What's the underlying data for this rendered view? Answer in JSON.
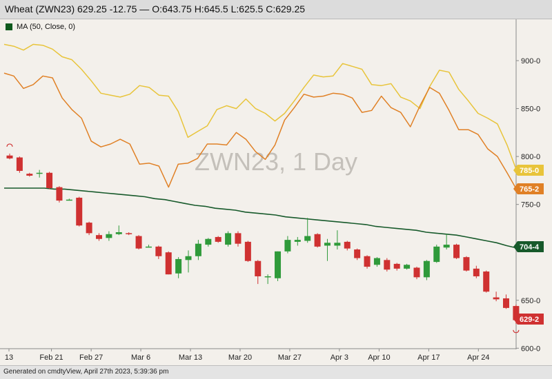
{
  "header": {
    "title": "Wheat (ZWN23) 629.25 -12.75 — O:643.75 H:645.5 L:625.5 C:629.25"
  },
  "legend": {
    "label": "MA (50, Close, 0)",
    "color": "#0f5a1e"
  },
  "footer": {
    "text": "Generated on cmdtyView, April 27th 2023, 5:39:36 pm"
  },
  "chart_data": {
    "type": "candlestick",
    "watermark": "ZWN23, 1 Day",
    "ylim": [
      600,
      935
    ],
    "y_ticks": [
      "900-0",
      "850-0",
      "800-0",
      "750-0",
      "650-0",
      "600-0"
    ],
    "x_ticks": [
      "13",
      "Feb 21",
      "Feb 27",
      "Mar 6",
      "Mar 13",
      "Mar 20",
      "Mar 27",
      "Apr 3",
      "Apr 10",
      "Apr 17",
      "Apr 24"
    ],
    "price_tags": [
      {
        "label": "785-0",
        "color": "#e8c43a"
      },
      {
        "label": "765-2",
        "color": "#e08025"
      },
      {
        "label": "704-4",
        "color": "#16592a"
      },
      {
        "label": "629-2",
        "color": "#cf3131"
      }
    ],
    "colors": {
      "up": "#2f9a3a",
      "down": "#cf3131",
      "ma": "#16592a",
      "upper_line": "#e8c43a",
      "lower_line": "#e08025"
    },
    "candles": [
      {
        "date": "Feb 14",
        "o": 801,
        "h": 803,
        "l": 797,
        "c": 798
      },
      {
        "date": "Feb 15",
        "o": 799,
        "h": 800,
        "l": 783,
        "c": 785
      },
      {
        "date": "Feb 16",
        "o": 782,
        "h": 783,
        "l": 779,
        "c": 780
      },
      {
        "date": "Feb 17",
        "o": 782,
        "h": 786,
        "l": 778,
        "c": 783
      },
      {
        "date": "Feb 21",
        "o": 783,
        "h": 784,
        "l": 766,
        "c": 767
      },
      {
        "date": "Feb 22",
        "o": 768,
        "h": 769,
        "l": 752,
        "c": 754
      },
      {
        "date": "Feb 23",
        "o": 755,
        "h": 756,
        "l": 754,
        "c": 755
      },
      {
        "date": "Feb 24",
        "o": 757,
        "h": 758,
        "l": 727,
        "c": 728
      },
      {
        "date": "Feb 27",
        "o": 731,
        "h": 732,
        "l": 718,
        "c": 720
      },
      {
        "date": "Feb 28",
        "o": 718,
        "h": 720,
        "l": 712,
        "c": 714
      },
      {
        "date": "Mar 1",
        "o": 715,
        "h": 722,
        "l": 712,
        "c": 719
      },
      {
        "date": "Mar 2",
        "o": 719,
        "h": 728,
        "l": 718,
        "c": 721
      },
      {
        "date": "Mar 3",
        "o": 720,
        "h": 721,
        "l": 718,
        "c": 719
      },
      {
        "date": "Mar 6",
        "o": 717,
        "h": 718,
        "l": 703,
        "c": 704
      },
      {
        "date": "Mar 7",
        "o": 706,
        "h": 708,
        "l": 705,
        "c": 706
      },
      {
        "date": "Mar 8",
        "o": 706,
        "h": 707,
        "l": 693,
        "c": 696
      },
      {
        "date": "Mar 9",
        "o": 700,
        "h": 701,
        "l": 677,
        "c": 677
      },
      {
        "date": "Mar 10",
        "o": 678,
        "h": 695,
        "l": 673,
        "c": 693
      },
      {
        "date": "Mar 13",
        "o": 692,
        "h": 702,
        "l": 679,
        "c": 696
      },
      {
        "date": "Mar 14",
        "o": 696,
        "h": 713,
        "l": 692,
        "c": 709
      },
      {
        "date": "Mar 15",
        "o": 708,
        "h": 715,
        "l": 706,
        "c": 714
      },
      {
        "date": "Mar 16",
        "o": 716,
        "h": 717,
        "l": 710,
        "c": 711
      },
      {
        "date": "Mar 17",
        "o": 708,
        "h": 722,
        "l": 706,
        "c": 720
      },
      {
        "date": "Mar 20",
        "o": 720,
        "h": 722,
        "l": 706,
        "c": 709
      },
      {
        "date": "Mar 21",
        "o": 711,
        "h": 712,
        "l": 690,
        "c": 691
      },
      {
        "date": "Mar 22",
        "o": 691,
        "h": 692,
        "l": 667,
        "c": 675
      },
      {
        "date": "Mar 23",
        "o": 674,
        "h": 677,
        "l": 667,
        "c": 675
      },
      {
        "date": "Mar 24",
        "o": 673,
        "h": 701,
        "l": 670,
        "c": 701
      },
      {
        "date": "Mar 27",
        "o": 701,
        "h": 717,
        "l": 699,
        "c": 713
      },
      {
        "date": "Mar 28",
        "o": 711,
        "h": 716,
        "l": 707,
        "c": 713
      },
      {
        "date": "Mar 29",
        "o": 712,
        "h": 736,
        "l": 710,
        "c": 717
      },
      {
        "date": "Mar 30",
        "o": 719,
        "h": 720,
        "l": 705,
        "c": 706
      },
      {
        "date": "Mar 31",
        "o": 707,
        "h": 714,
        "l": 691,
        "c": 710
      },
      {
        "date": "Apr 3",
        "o": 707,
        "h": 723,
        "l": 703,
        "c": 710
      },
      {
        "date": "Apr 4",
        "o": 711,
        "h": 712,
        "l": 702,
        "c": 704
      },
      {
        "date": "Apr 5",
        "o": 703,
        "h": 704,
        "l": 692,
        "c": 694
      },
      {
        "date": "Apr 6",
        "o": 696,
        "h": 697,
        "l": 683,
        "c": 685
      },
      {
        "date": "Apr 10",
        "o": 687,
        "h": 695,
        "l": 685,
        "c": 694
      },
      {
        "date": "Apr 11",
        "o": 692,
        "h": 694,
        "l": 680,
        "c": 682
      },
      {
        "date": "Apr 12",
        "o": 688,
        "h": 689,
        "l": 681,
        "c": 683
      },
      {
        "date": "Apr 13",
        "o": 683,
        "h": 688,
        "l": 682,
        "c": 687
      },
      {
        "date": "Apr 14",
        "o": 684,
        "h": 685,
        "l": 672,
        "c": 674
      },
      {
        "date": "Apr 17",
        "o": 674,
        "h": 692,
        "l": 671,
        "c": 691
      },
      {
        "date": "Apr 18",
        "o": 690,
        "h": 708,
        "l": 689,
        "c": 706
      },
      {
        "date": "Apr 19",
        "o": 705,
        "h": 719,
        "l": 703,
        "c": 708
      },
      {
        "date": "Apr 20",
        "o": 708,
        "h": 709,
        "l": 693,
        "c": 694
      },
      {
        "date": "Apr 21",
        "o": 695,
        "h": 696,
        "l": 680,
        "c": 681
      },
      {
        "date": "Apr 24",
        "o": 683,
        "h": 686,
        "l": 673,
        "c": 675
      },
      {
        "date": "Apr 25",
        "o": 680,
        "h": 681,
        "l": 658,
        "c": 659
      },
      {
        "date": "Apr 26",
        "o": 653,
        "h": 659,
        "l": 649,
        "c": 651
      },
      {
        "date": "Apr 26b",
        "o": 652,
        "h": 656,
        "l": 641,
        "c": 642
      },
      {
        "date": "Apr 27",
        "o": 644,
        "h": 645.5,
        "l": 625.5,
        "c": 629.25
      }
    ],
    "series": [
      {
        "name": "MA (50, Close, 0)",
        "role": "ma",
        "values": [
          767,
          767,
          767,
          767,
          767,
          766,
          766,
          765,
          764,
          763,
          762,
          761,
          760,
          759,
          758,
          756,
          755,
          753,
          751,
          749,
          748,
          746,
          745,
          744,
          742,
          741,
          740,
          739,
          737,
          736,
          735,
          734,
          733,
          732,
          731,
          730,
          729,
          727,
          726,
          725,
          724,
          723,
          721,
          720,
          719,
          718,
          716,
          714,
          712,
          710,
          707,
          704.5
        ]
      },
      {
        "role": "upper",
        "values": [
          917,
          915,
          911,
          917,
          916,
          912,
          904,
          901,
          891,
          879,
          866,
          864,
          862,
          865,
          874,
          872,
          864,
          863,
          847,
          820,
          826,
          832,
          849,
          853,
          850,
          860,
          850,
          845,
          837,
          845,
          858,
          872,
          885,
          883,
          884,
          897,
          894,
          891,
          875,
          874,
          876,
          862,
          858,
          850,
          873,
          890,
          888,
          870,
          858,
          845,
          840,
          834,
          812,
          785
        ]
      },
      {
        "role": "lower",
        "values": [
          887,
          884,
          871,
          875,
          884,
          882,
          861,
          849,
          840,
          816,
          810,
          813,
          818,
          813,
          792,
          793,
          790,
          768,
          792,
          793,
          798,
          813,
          813,
          812,
          825,
          818,
          805,
          797,
          812,
          838,
          851,
          865,
          862,
          863,
          866,
          865,
          861,
          846,
          848,
          863,
          851,
          846,
          831,
          853,
          872,
          866,
          848,
          828,
          828,
          823,
          808,
          800,
          783,
          765.25
        ]
      }
    ]
  }
}
